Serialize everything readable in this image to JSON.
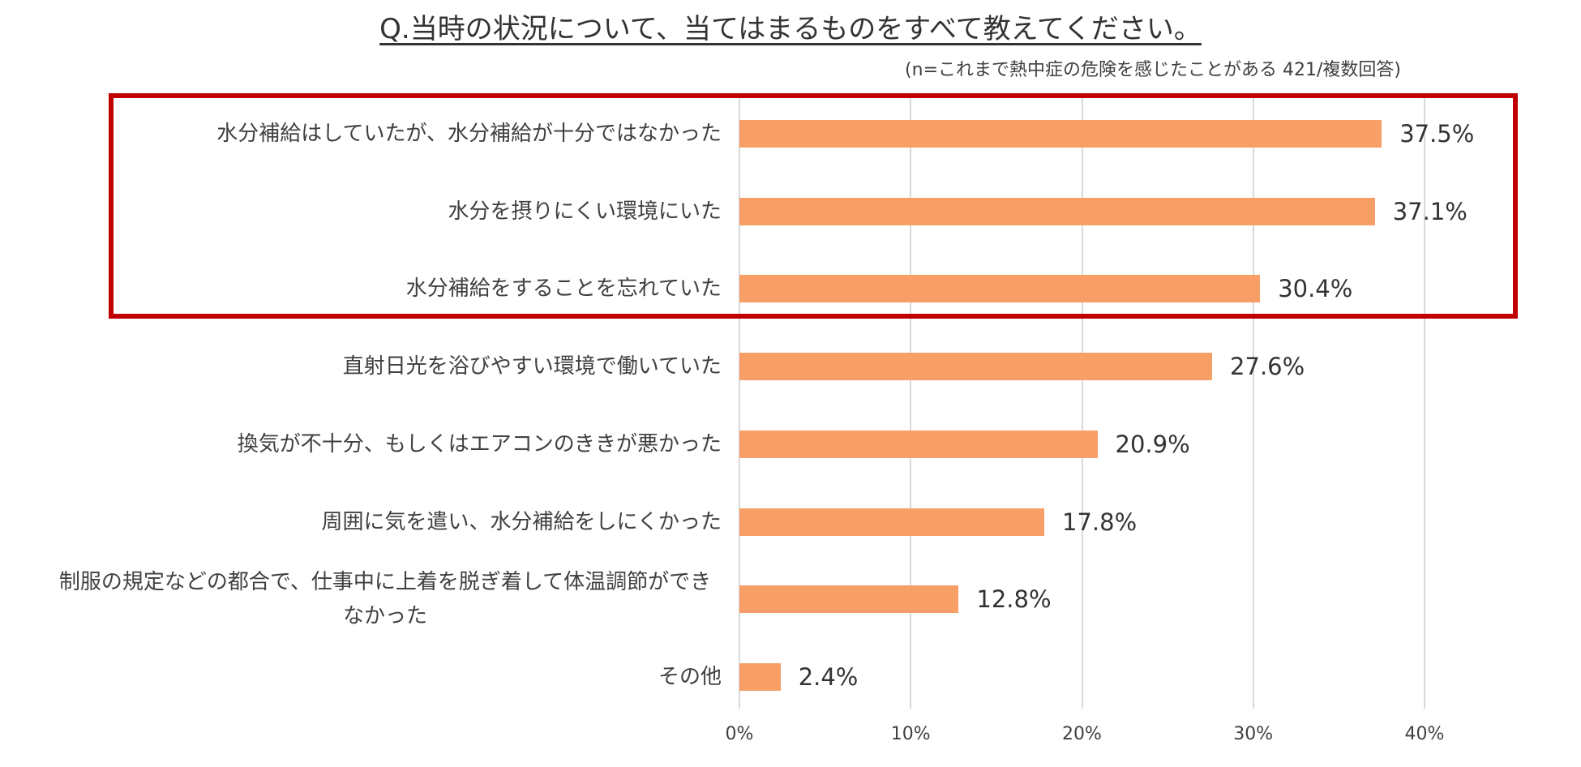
{
  "chart_data": {
    "type": "bar",
    "orientation": "horizontal",
    "title": "Q.当時の状況について、当てはまるものをすべて教えてください。",
    "subtitle": "(n=これまで熱中症の危険を感じたことがある 421/複数回答)",
    "categories": [
      "水分補給はしていたが、水分補給が十分ではなかった",
      "水分を摂りにくい環境にいた",
      "水分補給をすることを忘れていた",
      "直射日光を浴びやすい環境で働いていた",
      "換気が不十分、もしくはエアコンのききが悪かった",
      "周囲に気を遣い、水分補給をしにくかった",
      "制服の規定などの都合で、仕事中に上着を脱ぎ着して体温調節ができなかった",
      "その他"
    ],
    "values": [
      37.5,
      37.1,
      30.4,
      27.6,
      20.9,
      17.8,
      12.8,
      2.4
    ],
    "value_labels": [
      "37.5%",
      "37.1%",
      "30.4%",
      "27.6%",
      "20.9%",
      "17.8%",
      "12.8%",
      "2.4%"
    ],
    "xlim": [
      0,
      40
    ],
    "xticks": [
      "0%",
      "10%",
      "20%",
      "30%",
      "40%"
    ],
    "bar_color": "#f79f67",
    "grid": true,
    "highlighted_categories": [
      0,
      1,
      2
    ],
    "highlight_color": "#c00000"
  }
}
